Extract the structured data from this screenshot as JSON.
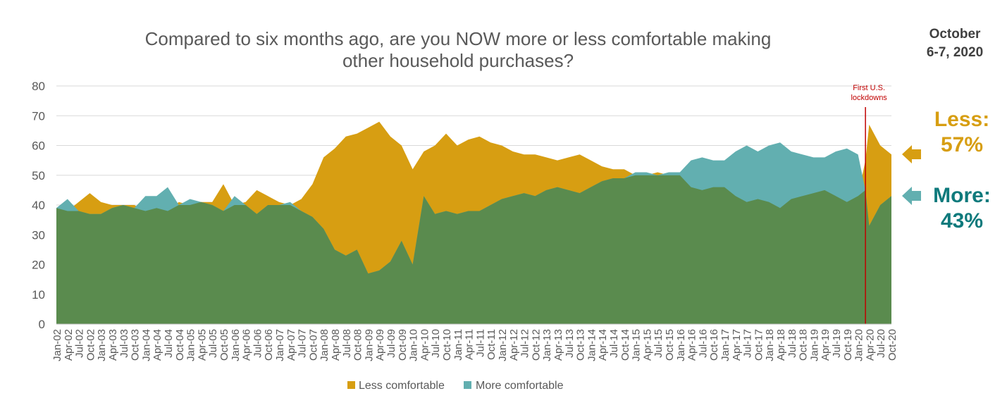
{
  "title_line1": "Compared to six months ago, are you NOW more or less comfortable making",
  "title_line2": "other household purchases?",
  "date_line1": "October",
  "date_line2": "6-7, 2020",
  "annotation_line1": "First U.S.",
  "annotation_line2": "lockdowns",
  "callouts": {
    "less_label": "Less:",
    "less_value": "57%",
    "more_label": "More:",
    "more_value": "43%"
  },
  "colors": {
    "less": "#D79E12",
    "more": "#62AFB0",
    "base": "#5A8B4E",
    "grid": "#D9D9D9",
    "axis_text": "#595959",
    "marker": "#C00000",
    "more_text": "#0E7A7C"
  },
  "chart_data": {
    "type": "area",
    "title": "Compared to six months ago, are you NOW more or less comfortable making other household purchases?",
    "xlabel": "",
    "ylabel": "",
    "ylim": [
      0,
      80
    ],
    "y_ticks": [
      0,
      10,
      20,
      30,
      40,
      50,
      60,
      70,
      80
    ],
    "x_range": [
      "2002-01",
      "2020-10"
    ],
    "x_tick_labels": [
      "Jan-02",
      "Apr-02",
      "Jul-02",
      "Oct-02",
      "Jan-03",
      "Apr-03",
      "Jul-03",
      "Oct-03",
      "Jan-04",
      "Apr-04",
      "Jul-04",
      "Oct-04",
      "Jan-05",
      "Apr-05",
      "Jul-05",
      "Oct-05",
      "Jan-06",
      "Apr-06",
      "Jul-06",
      "Oct-06",
      "Jan-07",
      "Apr-07",
      "Jul-07",
      "Oct-07",
      "Jan-08",
      "Apr-08",
      "Jul-08",
      "Oct-08",
      "Jan-09",
      "Apr-09",
      "Jul-09",
      "Oct-09",
      "Jan-10",
      "Apr-10",
      "Jul-10",
      "Oct-10",
      "Jan-11",
      "Apr-11",
      "Jul-11",
      "Oct-11",
      "Jan-12",
      "Apr-12",
      "Jul-12",
      "Oct-12",
      "Jan-13",
      "Apr-13",
      "Jul-13",
      "Oct-13",
      "Jan-14",
      "Apr-14",
      "Jul-14",
      "Oct-14",
      "Jan-15",
      "Apr-15",
      "Jul-15",
      "Oct-15",
      "Jan-16",
      "Apr-16",
      "Jul-16",
      "Oct-16",
      "Jan-17",
      "Apr-17",
      "Jul-17",
      "Oct-17",
      "Jan-18",
      "Apr-18",
      "Jul-18",
      "Oct-18",
      "Jan-19",
      "Apr-19",
      "Jul-19",
      "Oct-19",
      "Jan-20",
      "Apr-20",
      "Jul-20",
      "Oct-20"
    ],
    "legend": [
      "Less comfortable",
      "More comfortable"
    ],
    "legend_position": "bottom",
    "grid": true,
    "vertical_marker": {
      "x": "2020-03",
      "label": "First U.S. lockdowns"
    },
    "series": [
      {
        "name": "Less comfortable",
        "points": [
          [
            "2002-01",
            39
          ],
          [
            "2002-04",
            38
          ],
          [
            "2002-07",
            41
          ],
          [
            "2002-10",
            44
          ],
          [
            "2003-01",
            41
          ],
          [
            "2003-04",
            40
          ],
          [
            "2003-07",
            40
          ],
          [
            "2003-10",
            40
          ],
          [
            "2004-01",
            38
          ],
          [
            "2004-04",
            39
          ],
          [
            "2004-07",
            38
          ],
          [
            "2004-10",
            41
          ],
          [
            "2005-01",
            40
          ],
          [
            "2005-04",
            41
          ],
          [
            "2005-07",
            41
          ],
          [
            "2005-10",
            47
          ],
          [
            "2006-01",
            40
          ],
          [
            "2006-04",
            41
          ],
          [
            "2006-07",
            45
          ],
          [
            "2006-10",
            43
          ],
          [
            "2007-01",
            41
          ],
          [
            "2007-04",
            40
          ],
          [
            "2007-07",
            42
          ],
          [
            "2007-10",
            47
          ],
          [
            "2008-01",
            56
          ],
          [
            "2008-04",
            59
          ],
          [
            "2008-07",
            63
          ],
          [
            "2008-10",
            64
          ],
          [
            "2009-01",
            66
          ],
          [
            "2009-04",
            68
          ],
          [
            "2009-07",
            63
          ],
          [
            "2009-10",
            60
          ],
          [
            "2010-01",
            52
          ],
          [
            "2010-04",
            58
          ],
          [
            "2010-07",
            60
          ],
          [
            "2010-10",
            64
          ],
          [
            "2011-01",
            60
          ],
          [
            "2011-04",
            62
          ],
          [
            "2011-07",
            63
          ],
          [
            "2011-10",
            61
          ],
          [
            "2012-01",
            60
          ],
          [
            "2012-04",
            58
          ],
          [
            "2012-07",
            57
          ],
          [
            "2012-10",
            57
          ],
          [
            "2013-01",
            56
          ],
          [
            "2013-04",
            55
          ],
          [
            "2013-07",
            56
          ],
          [
            "2013-10",
            57
          ],
          [
            "2014-01",
            55
          ],
          [
            "2014-04",
            53
          ],
          [
            "2014-07",
            52
          ],
          [
            "2014-10",
            52
          ],
          [
            "2015-01",
            50
          ],
          [
            "2015-04",
            50
          ],
          [
            "2015-07",
            51
          ],
          [
            "2015-10",
            50
          ],
          [
            "2016-01",
            50
          ],
          [
            "2016-04",
            46
          ],
          [
            "2016-07",
            45
          ],
          [
            "2016-10",
            46
          ],
          [
            "2017-01",
            46
          ],
          [
            "2017-04",
            43
          ],
          [
            "2017-07",
            41
          ],
          [
            "2017-10",
            42
          ],
          [
            "2018-01",
            41
          ],
          [
            "2018-04",
            39
          ],
          [
            "2018-07",
            42
          ],
          [
            "2018-10",
            43
          ],
          [
            "2019-01",
            44
          ],
          [
            "2019-04",
            45
          ],
          [
            "2019-07",
            43
          ],
          [
            "2019-10",
            41
          ],
          [
            "2020-01",
            43
          ],
          [
            "2020-03",
            55
          ],
          [
            "2020-04",
            67
          ],
          [
            "2020-07",
            60
          ],
          [
            "2020-10",
            57
          ]
        ]
      },
      {
        "name": "More comfortable",
        "points": [
          [
            "2002-01",
            39
          ],
          [
            "2002-04",
            42
          ],
          [
            "2002-07",
            38
          ],
          [
            "2002-10",
            37
          ],
          [
            "2003-01",
            37
          ],
          [
            "2003-04",
            39
          ],
          [
            "2003-07",
            40
          ],
          [
            "2003-10",
            39
          ],
          [
            "2004-01",
            43
          ],
          [
            "2004-04",
            43
          ],
          [
            "2004-07",
            46
          ],
          [
            "2004-10",
            40
          ],
          [
            "2005-01",
            42
          ],
          [
            "2005-04",
            41
          ],
          [
            "2005-07",
            40
          ],
          [
            "2005-10",
            38
          ],
          [
            "2006-01",
            43
          ],
          [
            "2006-04",
            40
          ],
          [
            "2006-07",
            37
          ],
          [
            "2006-10",
            40
          ],
          [
            "2007-01",
            40
          ],
          [
            "2007-04",
            41
          ],
          [
            "2007-07",
            38
          ],
          [
            "2007-10",
            36
          ],
          [
            "2008-01",
            32
          ],
          [
            "2008-04",
            25
          ],
          [
            "2008-07",
            23
          ],
          [
            "2008-10",
            25
          ],
          [
            "2009-01",
            17
          ],
          [
            "2009-04",
            18
          ],
          [
            "2009-07",
            21
          ],
          [
            "2009-10",
            28
          ],
          [
            "2010-01",
            20
          ],
          [
            "2010-04",
            43
          ],
          [
            "2010-07",
            37
          ],
          [
            "2010-10",
            38
          ],
          [
            "2011-01",
            37
          ],
          [
            "2011-04",
            38
          ],
          [
            "2011-07",
            38
          ],
          [
            "2011-10",
            40
          ],
          [
            "2012-01",
            42
          ],
          [
            "2012-04",
            43
          ],
          [
            "2012-07",
            44
          ],
          [
            "2012-10",
            43
          ],
          [
            "2013-01",
            45
          ],
          [
            "2013-04",
            46
          ],
          [
            "2013-07",
            45
          ],
          [
            "2013-10",
            44
          ],
          [
            "2014-01",
            46
          ],
          [
            "2014-04",
            48
          ],
          [
            "2014-07",
            49
          ],
          [
            "2014-10",
            49
          ],
          [
            "2015-01",
            51
          ],
          [
            "2015-04",
            51
          ],
          [
            "2015-07",
            50
          ],
          [
            "2015-10",
            51
          ],
          [
            "2016-01",
            51
          ],
          [
            "2016-04",
            55
          ],
          [
            "2016-07",
            56
          ],
          [
            "2016-10",
            55
          ],
          [
            "2017-01",
            55
          ],
          [
            "2017-04",
            58
          ],
          [
            "2017-07",
            60
          ],
          [
            "2017-10",
            58
          ],
          [
            "2018-01",
            60
          ],
          [
            "2018-04",
            61
          ],
          [
            "2018-07",
            58
          ],
          [
            "2018-10",
            57
          ],
          [
            "2019-01",
            56
          ],
          [
            "2019-04",
            56
          ],
          [
            "2019-07",
            58
          ],
          [
            "2019-10",
            59
          ],
          [
            "2020-01",
            57
          ],
          [
            "2020-03",
            45
          ],
          [
            "2020-04",
            33
          ],
          [
            "2020-07",
            40
          ],
          [
            "2020-10",
            43
          ]
        ]
      }
    ]
  }
}
